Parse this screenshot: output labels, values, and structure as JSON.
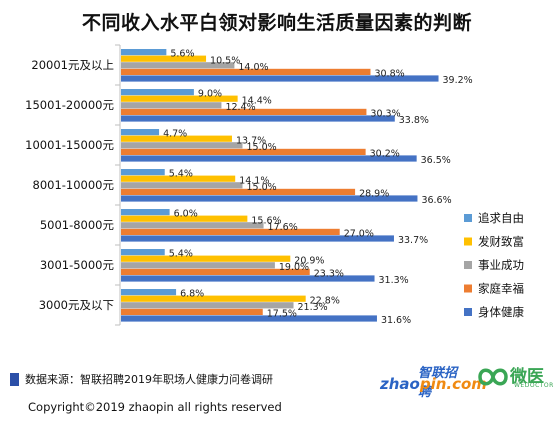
{
  "chart_data": {
    "type": "bar",
    "orientation": "horizontal",
    "title": "不同收入水平白领对影响生活质量因素的判断",
    "categories": [
      "20001元及以上",
      "15001-20000元",
      "10001-15000元",
      "8001-10000元",
      "5001-8000元",
      "3001-5000元",
      "3000元及以下"
    ],
    "series": [
      {
        "name": "追求自由",
        "color": "#5b9bd5",
        "values": [
          5.6,
          9.0,
          4.7,
          5.4,
          6.0,
          5.4,
          6.8
        ]
      },
      {
        "name": "发财致富",
        "color": "#ffc000",
        "values": [
          10.5,
          14.4,
          13.7,
          14.1,
          15.6,
          20.9,
          22.8
        ]
      },
      {
        "name": "事业成功",
        "color": "#a5a5a5",
        "values": [
          14.0,
          12.4,
          15.0,
          15.0,
          17.6,
          19.0,
          21.3
        ]
      },
      {
        "name": "家庭幸福",
        "color": "#ed7d31",
        "values": [
          30.8,
          30.3,
          30.2,
          28.9,
          27.0,
          23.3,
          17.5
        ]
      },
      {
        "name": "身体健康",
        "color": "#4472c4",
        "values": [
          39.2,
          33.8,
          36.5,
          36.6,
          33.7,
          31.3,
          31.6
        ]
      }
    ],
    "xlim": [
      0,
      45
    ],
    "legend_position": "right",
    "grid": false,
    "value_suffix": "%"
  },
  "footer": {
    "source": "数据来源：智联招聘2019年职场人健康力问卷调研",
    "copyright": "Copyright©2019 zhaopin all rights reserved"
  },
  "logos": {
    "zhaopin_cn": "智联招聘",
    "zhaopin_en_prefix": "zhao",
    "zhaopin_en_suffix": "pin.com",
    "weiyi_cn": "微医",
    "weiyi_en": "WEDOCTOR"
  }
}
